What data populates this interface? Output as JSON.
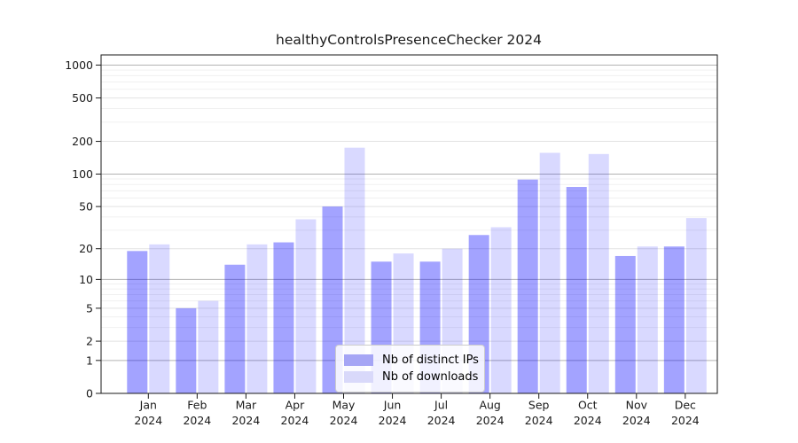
{
  "window": {
    "background": "#ffffff"
  },
  "chart_data": {
    "type": "bar",
    "title": "healthyControlsPresenceChecker 2024",
    "year_label": "2024",
    "categories": [
      "Jan",
      "Feb",
      "Mar",
      "Apr",
      "May",
      "Jun",
      "Jul",
      "Aug",
      "Sep",
      "Oct",
      "Nov",
      "Dec"
    ],
    "series": [
      {
        "name": "Nb of distinct IPs",
        "base_color": "#0000ff",
        "alpha": 0.36,
        "composite_color": "#a5a5f5",
        "values": [
          19,
          5,
          14,
          23,
          50,
          15,
          15,
          27,
          89,
          76,
          17,
          21
        ]
      },
      {
        "name": "Nb of downloads",
        "base_color": "#0000ff",
        "alpha": 0.15,
        "composite_color": "#d9d9fa",
        "values": [
          22,
          6,
          22,
          38,
          175,
          18,
          20,
          32,
          157,
          153,
          21,
          39
        ]
      }
    ],
    "yscale": "log1p",
    "yticks": [
      0,
      1,
      2,
      5,
      10,
      20,
      50,
      100,
      200,
      500,
      1000
    ],
    "ytick_labels": [
      "0",
      "1",
      "2",
      "5",
      "10",
      "20",
      "50",
      "100",
      "200",
      "500",
      "1000"
    ],
    "decade_ticks": [
      1,
      10,
      100,
      1000
    ],
    "minor_gridlines": [
      3,
      4,
      6,
      7,
      8,
      9,
      30,
      40,
      60,
      70,
      80,
      90,
      300,
      400,
      600,
      700,
      800,
      900
    ],
    "ylim": [
      0,
      1240
    ],
    "xlabel": "",
    "ylabel": "",
    "grid": "on",
    "legend_position": "lower-center",
    "colors": {
      "spine": "#1a1a1a",
      "grid_decade": "#b3b3b3",
      "grid_major": "#e2e2e2",
      "grid_minor": "#f0f0f0",
      "tick_label": "#1a1a1a"
    }
  }
}
